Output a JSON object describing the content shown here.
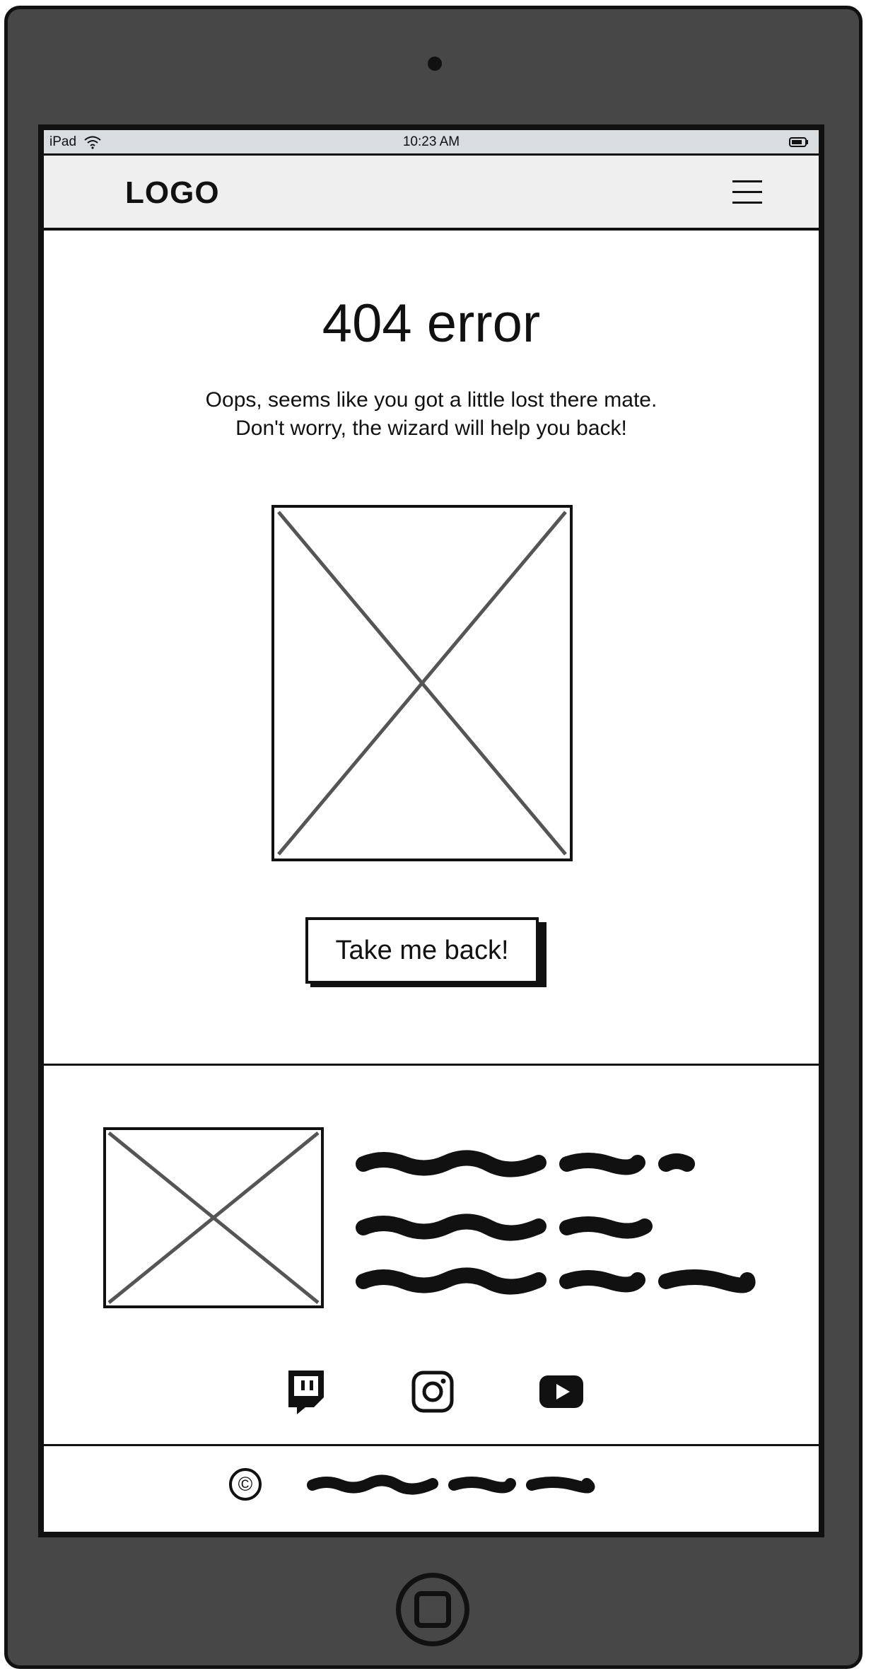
{
  "status_bar": {
    "device": "iPad",
    "time": "10:23 AM"
  },
  "navbar": {
    "logo": "LOGO",
    "menu_icon": "hamburger-menu-icon"
  },
  "main": {
    "title": "404 error",
    "message_line1": "Oops, seems like you got a little lost there mate.",
    "message_line2": "Don't worry, the wizard will help you back!",
    "image_icon": "image-placeholder-icon",
    "button_label": "Take me back!"
  },
  "footer": {
    "image_icon": "image-placeholder-icon",
    "text_lines": "scribble-placeholder-text",
    "social_icons": [
      "twitch-icon",
      "instagram-icon",
      "youtube-icon"
    ],
    "copyright_symbol": "©"
  },
  "colors": {
    "device_frame": "#474747",
    "status_bar": "#d7dde1",
    "navbar": "#efefef",
    "ink": "#111111",
    "placeholder_cross": "#555555"
  }
}
